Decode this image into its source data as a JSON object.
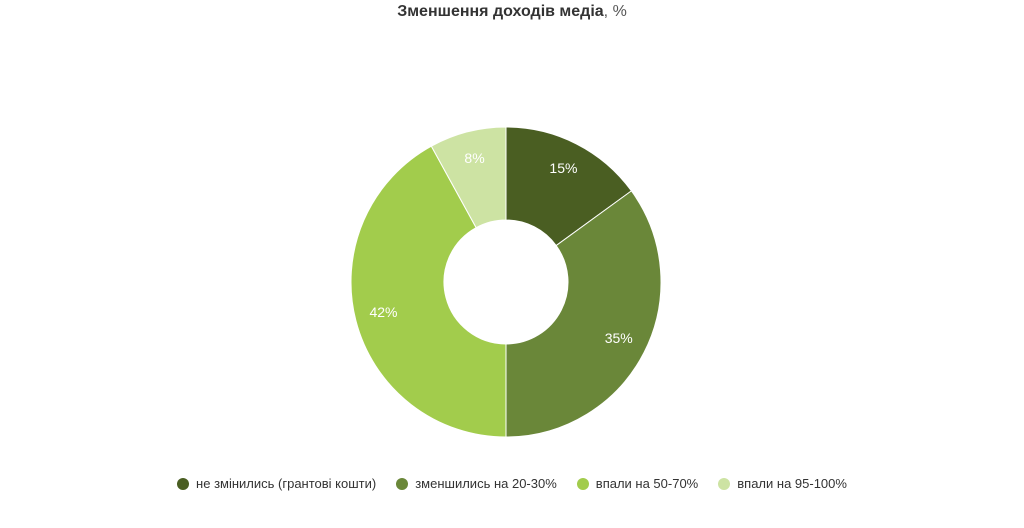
{
  "chart_data": {
    "type": "pie",
    "title": "Зменшення доходів медіа",
    "unit": "%",
    "categories": [
      "не змінились (грантові кошти)",
      "зменшились на 20-30%",
      "впали на 50-70%",
      "впали на 95-100%"
    ],
    "values": [
      15,
      35,
      42,
      8
    ],
    "labels": [
      "15%",
      "35%",
      "42%",
      "8%"
    ],
    "colors": [
      "#4a5e22",
      "#6a8739",
      "#a2cc4c",
      "#cde3a3"
    ],
    "legend": "bottom"
  }
}
